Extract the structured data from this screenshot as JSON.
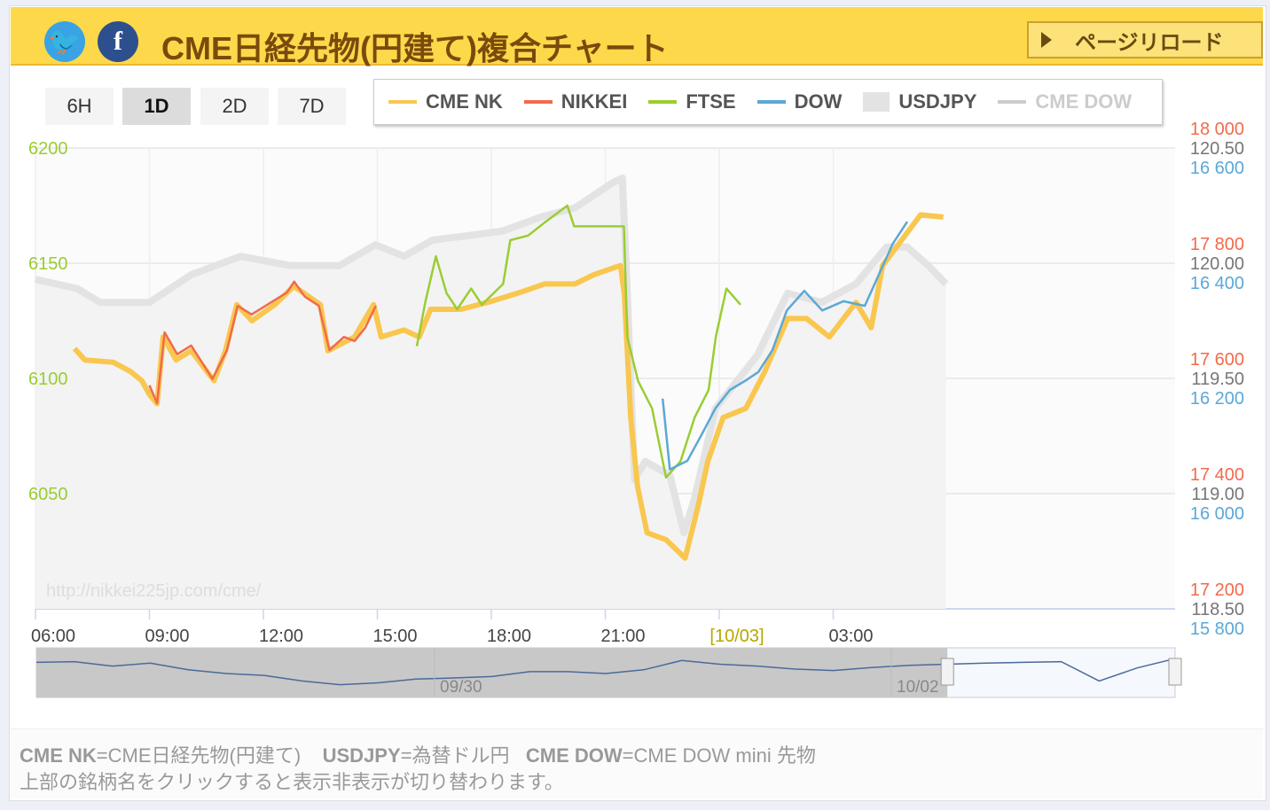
{
  "header": {
    "title": "CME日経先物(円建て)複合チャート",
    "reload_label": "ページリロード",
    "twitter_icon": "twitter-icon",
    "facebook_icon": "facebook-icon"
  },
  "range_buttons": [
    {
      "label": "6H",
      "active": false
    },
    {
      "label": "1D",
      "active": true
    },
    {
      "label": "2D",
      "active": false
    },
    {
      "label": "7D",
      "active": false
    }
  ],
  "legend": [
    {
      "label": "CME NK",
      "color": "#f9c74f",
      "visible": true
    },
    {
      "label": "NIKKEI",
      "color": "#f26a4b",
      "visible": true
    },
    {
      "label": "FTSE",
      "color": "#9acd32",
      "visible": true
    },
    {
      "label": "DOW",
      "color": "#5ba8d6",
      "visible": true
    },
    {
      "label": "USDJPY",
      "color": "#e3e3e3",
      "visible": true
    },
    {
      "label": "CME DOW",
      "color": "#cccccc",
      "visible": false
    }
  ],
  "watermark": "http://nikkei225jp.com/cme/",
  "chart_data": {
    "type": "line",
    "x_ticks": [
      "06:00",
      "09:00",
      "12:00",
      "15:00",
      "18:00",
      "21:00",
      "[10/03]",
      "03:00"
    ],
    "x_tick_hours": [
      0,
      3,
      6,
      9,
      12,
      15,
      18,
      21
    ],
    "x_unit": "hours since 06:00",
    "xlim": [
      0,
      30
    ],
    "grid": true,
    "axes": {
      "left": {
        "ticks": [
          "6200",
          "6150",
          "6100",
          "6050"
        ],
        "ylim": [
          6000,
          6200
        ],
        "color": "#9acd32"
      },
      "nikkei": {
        "ticks": [
          "18 000",
          "17 800",
          "17 600",
          "17 400",
          "17 200"
        ],
        "ylim": [
          17200,
          18000
        ],
        "color": "#f26a4b"
      },
      "usdjpy": {
        "ticks": [
          "120.50",
          "120.00",
          "119.50",
          "119.00",
          "118.50"
        ],
        "ylim": [
          118.5,
          120.5
        ],
        "color": "#777777"
      },
      "dow": {
        "ticks": [
          "16 600",
          "16 400",
          "16 200",
          "16 000",
          "15 800"
        ],
        "ylim": [
          15800,
          16600
        ],
        "color": "#5ba8d6"
      }
    },
    "series": [
      {
        "name": "USDJPY",
        "axis": "usdjpy",
        "type": "area",
        "points": [
          [
            0,
            119.93
          ],
          [
            1.1,
            119.89
          ],
          [
            1.7,
            119.83
          ],
          [
            3,
            119.83
          ],
          [
            4.1,
            119.95
          ],
          [
            5.4,
            120.03
          ],
          [
            6.7,
            119.99
          ],
          [
            8,
            119.99
          ],
          [
            8.95,
            120.08
          ],
          [
            9.7,
            120.03
          ],
          [
            10.45,
            120.1
          ],
          [
            11.4,
            120.12
          ],
          [
            12.3,
            120.14
          ],
          [
            13.3,
            120.2
          ],
          [
            14.2,
            120.24
          ],
          [
            15.2,
            120.35
          ],
          [
            15.45,
            120.37
          ],
          [
            15.58,
            119.87
          ],
          [
            15.77,
            119.06
          ],
          [
            16.05,
            119.14
          ],
          [
            16.7,
            119.08
          ],
          [
            17.07,
            118.83
          ],
          [
            17.35,
            118.98
          ],
          [
            17.9,
            119.37
          ],
          [
            19.0,
            119.6
          ],
          [
            19.8,
            119.87
          ],
          [
            20.7,
            119.83
          ],
          [
            21.6,
            119.91
          ],
          [
            22.4,
            120.07
          ],
          [
            22.95,
            120.07
          ],
          [
            23.5,
            119.99
          ],
          [
            23.97,
            119.91
          ]
        ]
      },
      {
        "name": "CME NK",
        "axis": "left",
        "points": [
          [
            1.03,
            6113
          ],
          [
            1.3,
            6108
          ],
          [
            2.05,
            6107
          ],
          [
            2.5,
            6103
          ],
          [
            2.8,
            6099
          ],
          [
            3.0,
            6093
          ],
          [
            3.2,
            6089
          ],
          [
            3.36,
            6118
          ],
          [
            3.7,
            6108
          ],
          [
            4.1,
            6112
          ],
          [
            4.7,
            6099
          ],
          [
            5.0,
            6112
          ],
          [
            5.3,
            6132
          ],
          [
            5.7,
            6125
          ],
          [
            6.3,
            6132
          ],
          [
            6.8,
            6140
          ],
          [
            7.5,
            6132
          ],
          [
            7.7,
            6112
          ],
          [
            8.4,
            6118
          ],
          [
            8.9,
            6132
          ],
          [
            9.1,
            6118
          ],
          [
            9.7,
            6121
          ],
          [
            10.1,
            6118
          ],
          [
            10.4,
            6130
          ],
          [
            11.2,
            6130
          ],
          [
            11.9,
            6133
          ],
          [
            12.7,
            6137
          ],
          [
            13.4,
            6141
          ],
          [
            14.2,
            6141
          ],
          [
            14.7,
            6145
          ],
          [
            15.4,
            6149
          ],
          [
            15.5,
            6137
          ],
          [
            15.67,
            6083
          ],
          [
            15.85,
            6053
          ],
          [
            16.1,
            6033
          ],
          [
            16.6,
            6030
          ],
          [
            17.1,
            6022
          ],
          [
            17.45,
            6045
          ],
          [
            17.7,
            6064
          ],
          [
            18.1,
            6083
          ],
          [
            18.7,
            6087
          ],
          [
            19.2,
            6103
          ],
          [
            19.8,
            6126
          ],
          [
            20.3,
            6126
          ],
          [
            20.9,
            6118
          ],
          [
            21.6,
            6133
          ],
          [
            22.0,
            6122
          ],
          [
            22.3,
            6149
          ],
          [
            22.8,
            6160
          ],
          [
            23.3,
            6171
          ],
          [
            23.9,
            6170
          ]
        ]
      },
      {
        "name": "NIKKEI",
        "axis": "nikkei",
        "points": [
          [
            3.0,
            17588
          ],
          [
            3.2,
            17557
          ],
          [
            3.4,
            17680
          ],
          [
            3.73,
            17642
          ],
          [
            4.1,
            17657
          ],
          [
            4.66,
            17599
          ],
          [
            5.04,
            17649
          ],
          [
            5.32,
            17726
          ],
          [
            5.69,
            17711
          ],
          [
            6.62,
            17749
          ],
          [
            6.81,
            17768
          ],
          [
            7.09,
            17742
          ],
          [
            7.46,
            17726
          ],
          [
            7.74,
            17649
          ],
          [
            8.12,
            17672
          ],
          [
            8.4,
            17665
          ],
          [
            8.68,
            17688
          ],
          [
            8.96,
            17726
          ]
        ]
      },
      {
        "name": "FTSE",
        "axis": "left",
        "points": [
          [
            10.04,
            6114
          ],
          [
            10.26,
            6133
          ],
          [
            10.54,
            6153
          ],
          [
            10.82,
            6137
          ],
          [
            11.1,
            6130
          ],
          [
            11.47,
            6139
          ],
          [
            11.75,
            6132
          ],
          [
            12.31,
            6141
          ],
          [
            12.5,
            6160
          ],
          [
            12.97,
            6162
          ],
          [
            13.43,
            6168
          ],
          [
            14.0,
            6175
          ],
          [
            14.18,
            6166
          ],
          [
            14.93,
            6166
          ],
          [
            15.49,
            6166
          ],
          [
            15.58,
            6118
          ],
          [
            15.86,
            6099
          ],
          [
            16.23,
            6087
          ],
          [
            16.6,
            6057
          ],
          [
            16.98,
            6064
          ],
          [
            17.35,
            6083
          ],
          [
            17.72,
            6095
          ],
          [
            17.91,
            6118
          ],
          [
            18.19,
            6139
          ],
          [
            18.56,
            6132
          ]
        ]
      },
      {
        "name": "DOW",
        "axis": "dow",
        "points": [
          [
            16.51,
            16165
          ],
          [
            16.7,
            16042
          ],
          [
            17.16,
            16057
          ],
          [
            17.54,
            16103
          ],
          [
            17.91,
            16149
          ],
          [
            18.28,
            16180
          ],
          [
            18.66,
            16195
          ],
          [
            19.03,
            16211
          ],
          [
            19.4,
            16249
          ],
          [
            19.78,
            16318
          ],
          [
            20.24,
            16352
          ],
          [
            20.71,
            16318
          ],
          [
            21.27,
            16334
          ],
          [
            21.83,
            16326
          ],
          [
            22.2,
            16380
          ],
          [
            22.57,
            16434
          ],
          [
            22.95,
            16472
          ]
        ]
      }
    ],
    "navigator": {
      "labels": [
        "09/30",
        "10/02"
      ],
      "values": [
        0.8,
        0.82,
        0.7,
        0.78,
        0.6,
        0.5,
        0.45,
        0.3,
        0.2,
        0.25,
        0.35,
        0.38,
        0.42,
        0.55,
        0.55,
        0.5,
        0.6,
        0.85,
        0.75,
        0.7,
        0.62,
        0.58,
        0.66,
        0.72,
        0.75,
        0.78,
        0.8,
        0.82,
        0.3,
        0.65,
        0.9
      ],
      "selected_from": 0.8
    }
  },
  "footer": {
    "line1": [
      {
        "key": "CME NK",
        "desc": "=CME日経先物(円建て)"
      },
      {
        "key": "USDJPY",
        "desc": "=為替ドル円"
      },
      {
        "key": "CME DOW",
        "desc": "=CME DOW mini 先物"
      }
    ],
    "line2": "上部の銘柄名をクリックすると表示非表示が切り替わります。"
  }
}
